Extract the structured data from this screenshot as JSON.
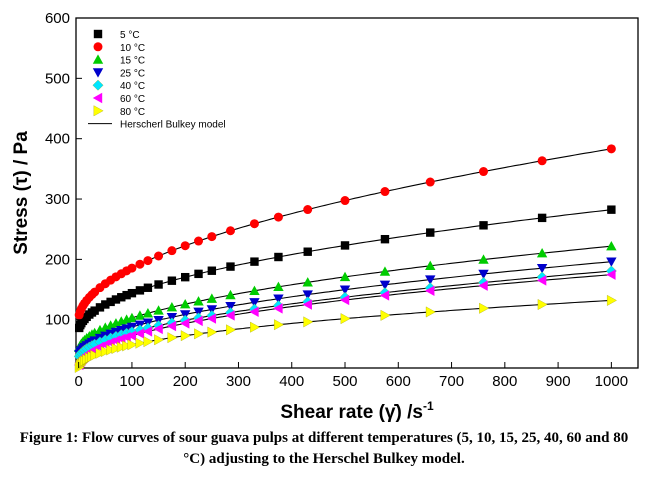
{
  "chart_data": {
    "type": "scatter",
    "xlabel_main": "Shear rate (",
    "xlabel_sym": "γ̇",
    "xlabel_tail": ") /s",
    "xlabel_sup": "-1",
    "ylabel": "Stress (τ) / Pa",
    "xlim": [
      -5,
      1050
    ],
    "ylim": [
      20,
      600
    ],
    "xticks": [
      0,
      100,
      200,
      300,
      400,
      500,
      600,
      700,
      800,
      900,
      1000
    ],
    "yticks": [
      100,
      200,
      300,
      400,
      500,
      600
    ],
    "grid": false,
    "legend_position": "top-left",
    "model_label": "Herscherl Bulkey model",
    "x": [
      1,
      3,
      5,
      8,
      11,
      15,
      20,
      25,
      30,
      40,
      50,
      60,
      70,
      80,
      90,
      100,
      115,
      130,
      150,
      175,
      200,
      225,
      250,
      285,
      330,
      375,
      430,
      500,
      575,
      660,
      760,
      870,
      1000
    ],
    "series": [
      {
        "name": "5 °C",
        "marker": "square",
        "color": "#000000",
        "tau0": 80,
        "K": 6.4,
        "n": 0.5
      },
      {
        "name": "10 °C",
        "marker": "circle",
        "color": "#ff0000",
        "tau0": 100,
        "K": 7.8,
        "n": 0.52
      },
      {
        "name": "15 °C",
        "marker": "triangle-up",
        "color": "#00cc00",
        "tau0": 48,
        "K": 5.5,
        "n": 0.5
      },
      {
        "name": "25 °C",
        "marker": "triangle-down",
        "color": "#0000cc",
        "tau0": 38,
        "K": 5.0,
        "n": 0.5
      },
      {
        "name": "40 °C",
        "marker": "diamond",
        "color": "#00e5ff",
        "tau0": 35,
        "K": 4.3,
        "n": 0.51
      },
      {
        "name": "60 °C",
        "marker": "triangle-left",
        "color": "#ff00ff",
        "tau0": 18,
        "K": 7.0,
        "n": 0.45
      },
      {
        "name": "80 °C",
        "marker": "triangle-right",
        "color": "#ffff00",
        "tau0": 15,
        "K": 6.0,
        "n": 0.43
      }
    ]
  },
  "caption": "Figure 1: Flow curves of sour guava pulps at different temperatures (5, 10, 15, 25, 40, 60 and 80 °C) adjusting to the Herschel Bulkey model."
}
